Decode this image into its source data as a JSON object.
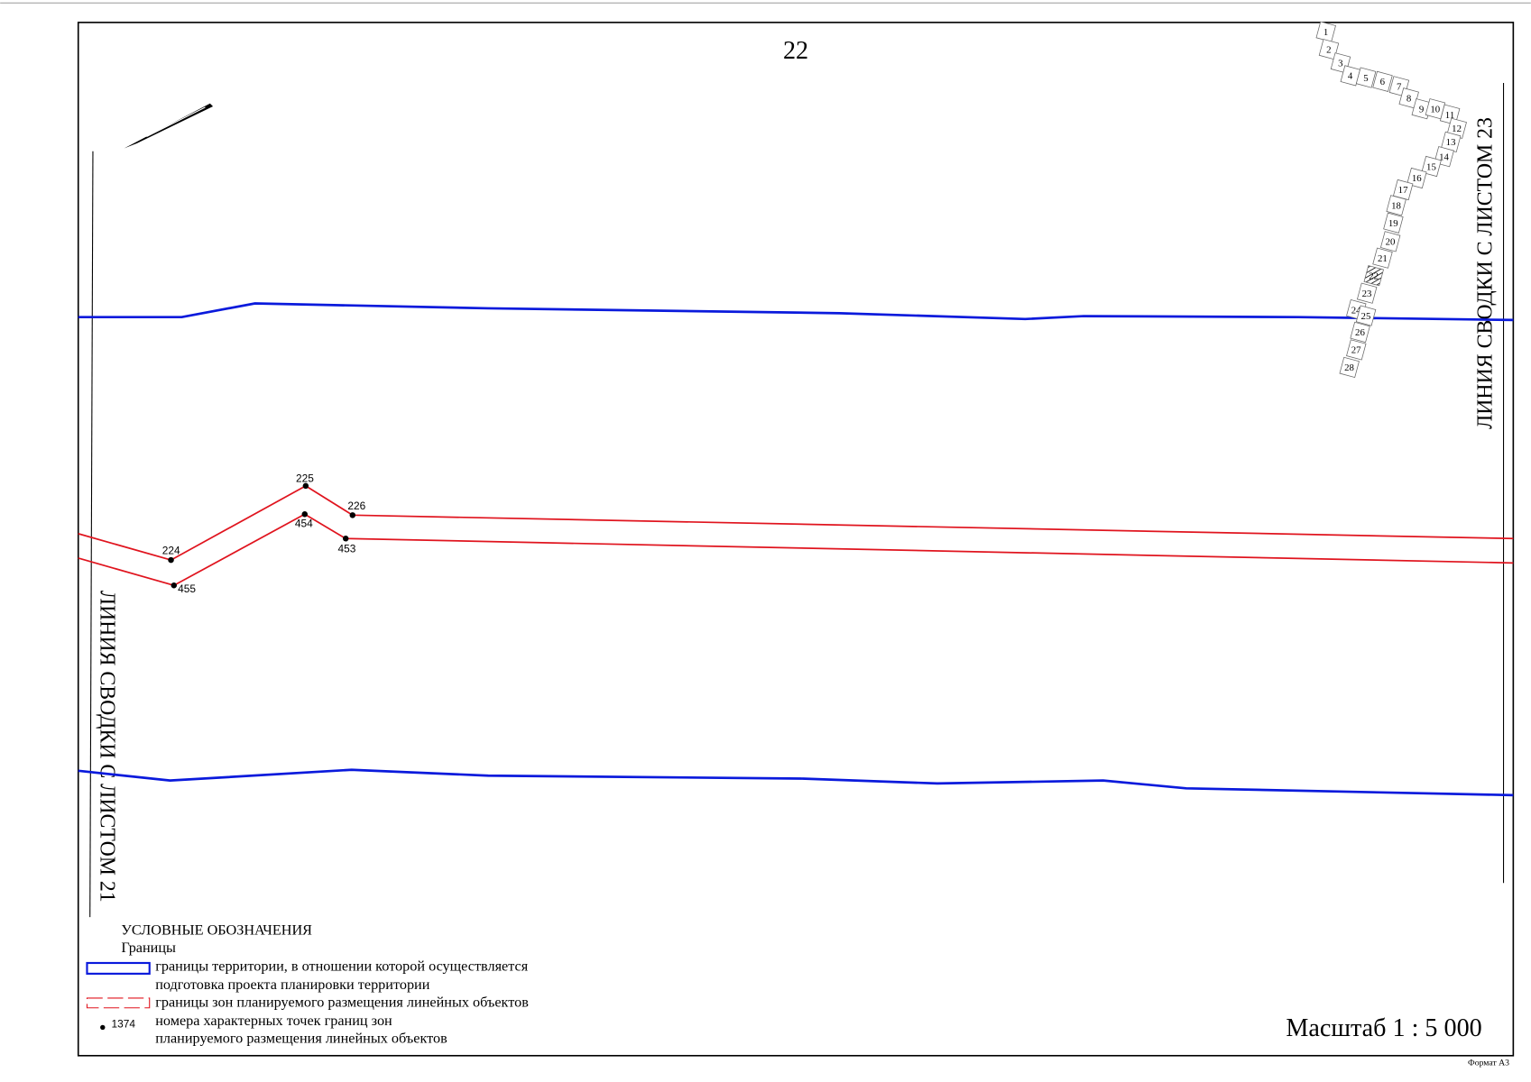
{
  "sheet_number": "22",
  "side_labels": {
    "right": "ЛИНИЯ СВОДКИ С ЛИСТОМ 23",
    "left": "ЛИНИЯ СВОДКИ С ЛИСТОМ 21"
  },
  "points": [
    "224",
    "225",
    "226",
    "453",
    "454",
    "455"
  ],
  "index_sheets": [
    "1",
    "2",
    "3",
    "4",
    "5",
    "6",
    "7",
    "8",
    "9",
    "10",
    "11",
    "12",
    "13",
    "14",
    "15",
    "16",
    "17",
    "18",
    "19",
    "20",
    "21",
    "22",
    "23",
    "24",
    "25",
    "26",
    "27",
    "28"
  ],
  "legend": {
    "title": "УСЛОВНЫЕ ОБОЗНАЧЕНИЯ",
    "group": "Границы",
    "items": [
      {
        "lines": [
          "границы территории, в отношении которой осуществляется",
          "подготовка проекта планировки территории"
        ]
      },
      {
        "lines": [
          "границы зон планируемого размещения линейных объектов"
        ]
      },
      {
        "lines": [
          "номера характерных точек границ зон",
          "планируемого размещения линейных объектов"
        ]
      }
    ],
    "sample_point": "1374"
  },
  "scale": "Масштаб 1 : 5 000",
  "format": "Формат А3"
}
